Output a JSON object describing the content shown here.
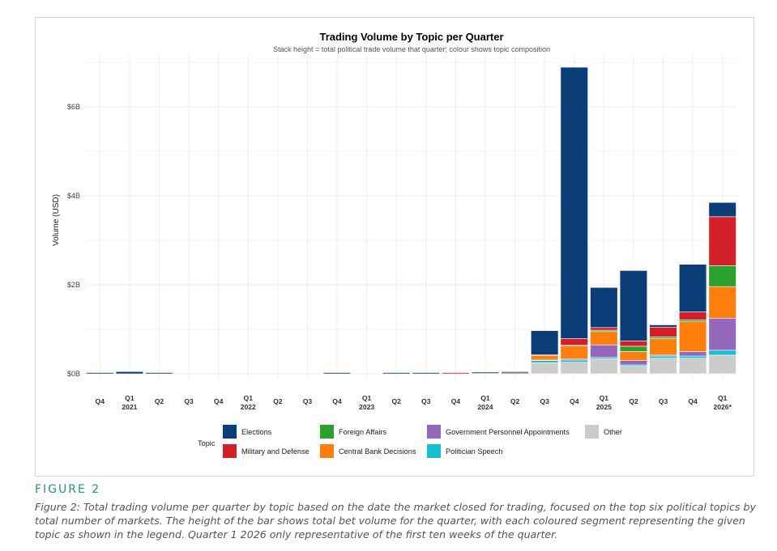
{
  "figure": {
    "label": "FIGURE 2",
    "caption": "Figure 2: Total trading volume per quarter by topic based on the date the market closed for trading, focused on the top six political topics by total number of markets. The height of the bar shows total bet volume for the quarter, with each coloured segment representing the given topic as shown in the legend. Quarter 1 2026 only representative of the first ten weeks of the quarter."
  },
  "chart_data": {
    "type": "bar",
    "stacked": true,
    "title": "Trading Volume by Topic per Quarter",
    "subtitle": "Stack height = total political trade volume that quarter; colour shows topic composition",
    "xlabel": "",
    "ylabel": "Volume (USD)",
    "ylim": [
      0,
      7
    ],
    "y_unit": "billions USD",
    "y_ticks": [
      {
        "value": 0,
        "label": "$0B"
      },
      {
        "value": 2,
        "label": "$2B"
      },
      {
        "value": 4,
        "label": "$4B"
      },
      {
        "value": 6,
        "label": "$6B"
      }
    ],
    "grid": true,
    "legend_position": "bottom",
    "legend_title": "Topic",
    "categories": [
      {
        "q": "Q4",
        "year": ""
      },
      {
        "q": "Q1",
        "year": "2021"
      },
      {
        "q": "Q2",
        "year": ""
      },
      {
        "q": "Q3",
        "year": ""
      },
      {
        "q": "Q4",
        "year": ""
      },
      {
        "q": "Q1",
        "year": "2022"
      },
      {
        "q": "Q2",
        "year": ""
      },
      {
        "q": "Q3",
        "year": ""
      },
      {
        "q": "Q4",
        "year": ""
      },
      {
        "q": "Q1",
        "year": "2023"
      },
      {
        "q": "Q2",
        "year": ""
      },
      {
        "q": "Q3",
        "year": ""
      },
      {
        "q": "Q4",
        "year": ""
      },
      {
        "q": "Q1",
        "year": "2024"
      },
      {
        "q": "Q2",
        "year": ""
      },
      {
        "q": "Q3",
        "year": ""
      },
      {
        "q": "Q4",
        "year": ""
      },
      {
        "q": "Q1",
        "year": "2025"
      },
      {
        "q": "Q2",
        "year": ""
      },
      {
        "q": "Q3",
        "year": ""
      },
      {
        "q": "Q4",
        "year": ""
      },
      {
        "q": "Q1",
        "year": "2026*"
      }
    ],
    "stack_order": [
      "Other",
      "Politician Speech",
      "Government Personnel Appointments",
      "Central Bank Decisions",
      "Foreign Affairs",
      "Military and Defense",
      "Elections"
    ],
    "legend_order": [
      "Elections",
      "Foreign Affairs",
      "Government Personnel Appointments",
      "Other",
      "Military and Defense",
      "Central Bank Decisions",
      "Politician Speech"
    ],
    "series": [
      {
        "name": "Elections",
        "color": "#0b3d78",
        "values": [
          0.02,
          0.05,
          0.01,
          0,
          0,
          0,
          0,
          0,
          0.01,
          0,
          0.01,
          0.01,
          0,
          0.02,
          0.01,
          0.54,
          6.1,
          0.9,
          1.58,
          0.05,
          1.07,
          0.32
        ]
      },
      {
        "name": "Military and Defense",
        "color": "#d1202a",
        "values": [
          0,
          0,
          0,
          0,
          0,
          0,
          0,
          0,
          0,
          0,
          0,
          0,
          0.01,
          0.01,
          0.02,
          0.02,
          0.15,
          0.06,
          0.12,
          0.22,
          0.18,
          1.1
        ]
      },
      {
        "name": "Foreign Affairs",
        "color": "#2ca02c",
        "values": [
          0,
          0,
          0,
          0,
          0,
          0,
          0,
          0,
          0,
          0,
          0,
          0,
          0,
          0,
          0,
          0,
          0.01,
          0.03,
          0.12,
          0.04,
          0.04,
          0.47
        ]
      },
      {
        "name": "Central Bank Decisions",
        "color": "#ff7f0e",
        "values": [
          0,
          0,
          0,
          0,
          0,
          0,
          0,
          0,
          0,
          0,
          0,
          0,
          0,
          0,
          0,
          0.1,
          0.3,
          0.3,
          0.2,
          0.37,
          0.67,
          0.71
        ]
      },
      {
        "name": "Government Personnel Appointments",
        "color": "#9467bd",
        "values": [
          0,
          0,
          0,
          0,
          0,
          0,
          0,
          0,
          0,
          0,
          0,
          0,
          0,
          0,
          0,
          0.01,
          0.02,
          0.28,
          0.1,
          0.02,
          0.1,
          0.72
        ]
      },
      {
        "name": "Politician Speech",
        "color": "#17becf",
        "values": [
          0,
          0,
          0,
          0,
          0,
          0,
          0,
          0,
          0,
          0,
          0,
          0,
          0,
          0,
          0,
          0.05,
          0.05,
          0.03,
          0.03,
          0.05,
          0.05,
          0.11
        ]
      },
      {
        "name": "Other",
        "color": "#cccccc",
        "values": [
          0,
          0,
          0,
          0,
          0,
          0,
          0,
          0,
          0,
          0,
          0,
          0,
          0,
          0,
          0,
          0.25,
          0.26,
          0.34,
          0.17,
          0.35,
          0.35,
          0.42
        ]
      }
    ]
  }
}
